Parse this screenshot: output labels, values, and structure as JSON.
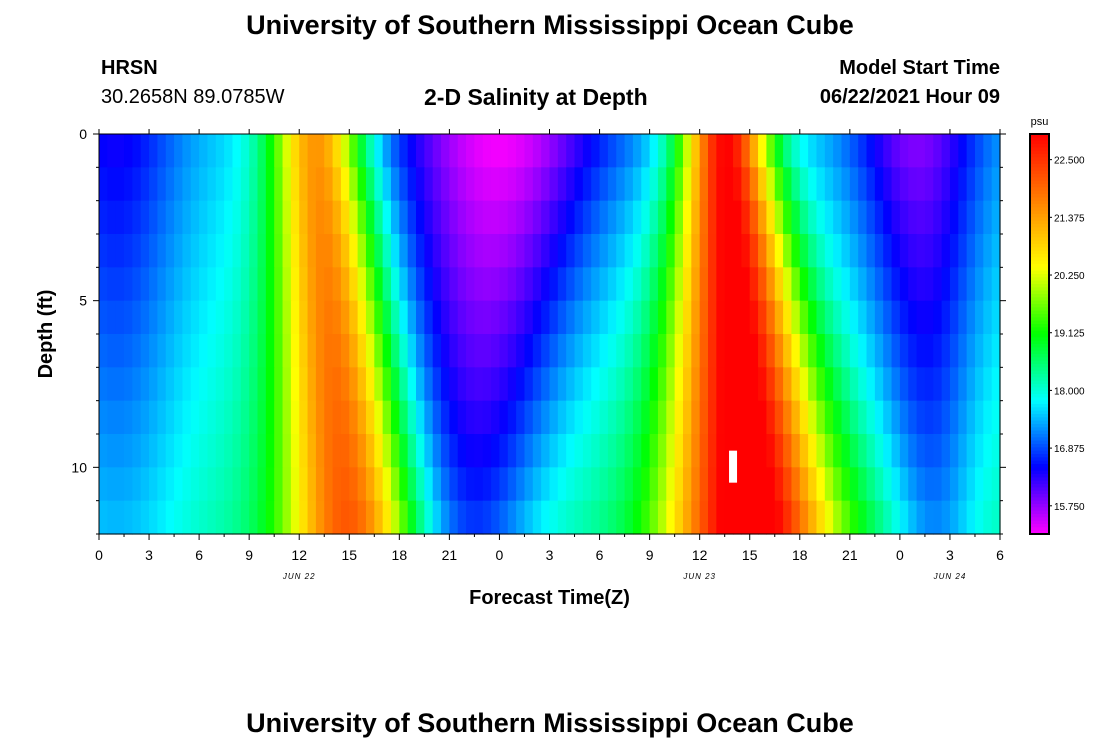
{
  "header": {
    "title": "University of Southern Mississippi Ocean Cube",
    "station": "HRSN",
    "coords": "30.2658N  89.0785W",
    "subtitle": "2-D Salinity at Depth",
    "model_start_label": "Model Start Time",
    "model_start_value": "06/22/2021 Hour 09"
  },
  "footer": {
    "title": "University of Southern Mississippi Ocean Cube"
  },
  "chart_data": {
    "type": "heatmap",
    "variable": "Salinity",
    "ylabel": "Depth (ft)",
    "xlabel": "Forecast Time(Z)",
    "x_ticks": [
      "0",
      "3",
      "6",
      "9",
      "12",
      "15",
      "18",
      "21",
      "0",
      "3",
      "6",
      "9",
      "12",
      "15",
      "18",
      "21",
      "0",
      "3",
      "6"
    ],
    "x_hours_per_tick": 3,
    "x_range_hours": [
      0,
      54
    ],
    "date_labels": [
      {
        "text": "JUN 22",
        "hour": 12
      },
      {
        "text": "JUN 23",
        "hour": 36
      },
      {
        "text": "JUN 24",
        "hour": 51
      }
    ],
    "y_ticks": [
      0,
      5,
      10
    ],
    "ylim": [
      0,
      12
    ],
    "colorbar": {
      "unit": "psu",
      "range": [
        15.2,
        23.0
      ],
      "ticks": [
        "22.500",
        "21.375",
        "20.250",
        "19.125",
        "18.000",
        "16.875",
        "15.750"
      ],
      "tick_values": [
        22.5,
        21.375,
        20.25,
        19.125,
        18.0,
        16.875,
        15.75
      ],
      "colors": [
        "#ff00ff",
        "#8000ff",
        "#0000ff",
        "#0080ff",
        "#00ffff",
        "#00ff80",
        "#00ff00",
        "#80ff00",
        "#ffff00",
        "#ffc000",
        "#ff8000",
        "#ff4000",
        "#ff0000"
      ]
    },
    "current_time_marker_hour": 38,
    "contour_ridges": [
      {
        "kind": "high",
        "value": 21.4,
        "surface": [
          [
            10.5,
            0
          ],
          [
            12,
            0
          ],
          [
            14,
            0
          ],
          [
            15.5,
            0
          ]
        ],
        "bottom": [
          [
            16,
            12
          ]
        ]
      },
      {
        "kind": "low",
        "value": 15.3,
        "center_hour": 24
      },
      {
        "kind": "high",
        "value": 22.7,
        "center_hour": 38
      },
      {
        "kind": "low",
        "value": 15.8,
        "center_hour": 48
      }
    ],
    "grid": false
  }
}
